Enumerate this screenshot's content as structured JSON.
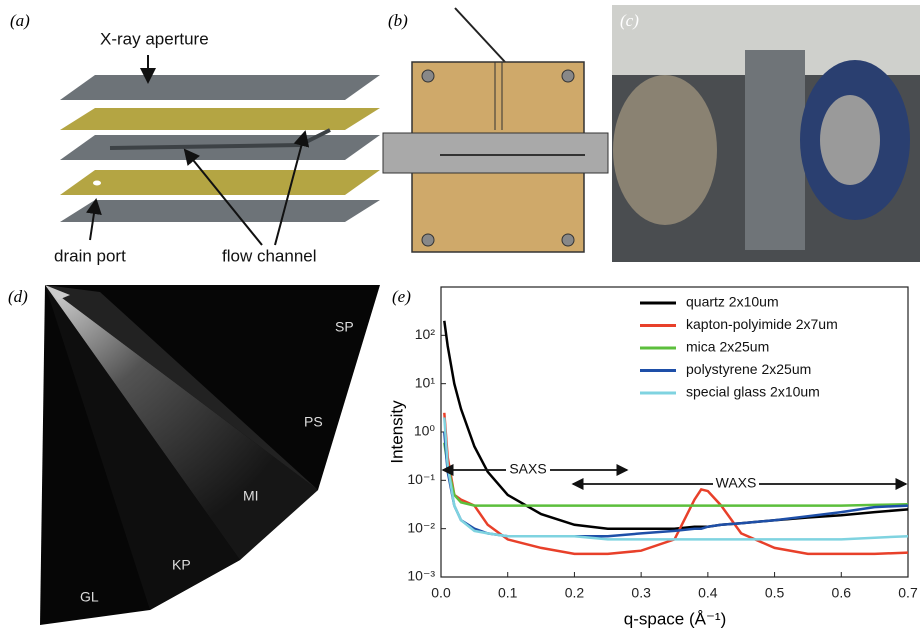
{
  "panels": {
    "a": {
      "label": "(a)",
      "annotations": [
        "X-ray aperture",
        "flow channel",
        "drain port"
      ]
    },
    "b": {
      "label": "(b)"
    },
    "c": {
      "label": "(c)"
    },
    "d": {
      "label": "(d)",
      "regions": [
        "SP",
        "PS",
        "MI",
        "KP",
        "GL"
      ]
    },
    "e": {
      "label": "(e)"
    }
  },
  "chart_data": {
    "type": "line",
    "xlabel": "q-space (Å⁻¹)",
    "ylabel": "Intensity",
    "log_y": true,
    "legend": "upper right",
    "annotations": [
      "SAXS",
      "WAXS"
    ],
    "x": [
      0.005,
      0.01,
      0.02,
      0.03,
      0.05,
      0.07,
      0.1,
      0.15,
      0.2,
      0.25,
      0.3,
      0.35,
      0.38,
      0.39,
      0.4,
      0.42,
      0.45,
      0.5,
      0.55,
      0.6,
      0.65,
      0.7
    ],
    "series": [
      {
        "name": "quartz 2x10um",
        "color": "#000000",
        "values": [
          200,
          60,
          10,
          3,
          0.5,
          0.15,
          0.05,
          0.02,
          0.012,
          0.01,
          0.01,
          0.01,
          0.011,
          0.011,
          0.011,
          0.012,
          0.013,
          0.015,
          0.017,
          0.019,
          0.022,
          0.025
        ]
      },
      {
        "name": "kapton-polyimide 2x7um",
        "color": "#e8402a",
        "values": [
          2.5,
          0.3,
          0.05,
          0.04,
          0.03,
          0.012,
          0.006,
          0.004,
          0.003,
          0.003,
          0.0035,
          0.006,
          0.04,
          0.065,
          0.06,
          0.03,
          0.008,
          0.004,
          0.003,
          0.003,
          0.003,
          0.0032
        ]
      },
      {
        "name": "mica 2x25um",
        "color": "#5cbf3c",
        "values": [
          0.6,
          0.2,
          0.05,
          0.035,
          0.03,
          0.03,
          0.03,
          0.03,
          0.03,
          0.03,
          0.03,
          0.03,
          0.03,
          0.03,
          0.03,
          0.03,
          0.03,
          0.03,
          0.03,
          0.03,
          0.031,
          0.032
        ]
      },
      {
        "name": "polystyrene 2x25um",
        "color": "#1e4fa8",
        "values": [
          1,
          0.15,
          0.03,
          0.015,
          0.01,
          0.008,
          0.007,
          0.007,
          0.007,
          0.007,
          0.008,
          0.009,
          0.01,
          0.01,
          0.011,
          0.012,
          0.013,
          0.015,
          0.018,
          0.022,
          0.028,
          0.03
        ]
      },
      {
        "name": "special glass 2x10um",
        "color": "#7fd3e0",
        "values": [
          2,
          0.2,
          0.03,
          0.015,
          0.009,
          0.008,
          0.007,
          0.007,
          0.007,
          0.006,
          0.006,
          0.006,
          0.006,
          0.006,
          0.006,
          0.006,
          0.006,
          0.006,
          0.006,
          0.006,
          0.0065,
          0.007
        ]
      }
    ],
    "xlim": [
      0,
      0.7
    ],
    "xticks": [
      {
        "value": 0,
        "label": "0.0"
      },
      0.1,
      0.2,
      0.3,
      0.4,
      0.5,
      0.6,
      0.7
    ],
    "ylim": [
      0.001,
      1000
    ],
    "yticks": [
      {
        "value": 0.001,
        "label": "10⁻³"
      },
      {
        "value": 0.01,
        "label": "10⁻²"
      },
      {
        "value": 0.1,
        "label": "10⁻¹"
      },
      {
        "value": 1,
        "label": "10⁰"
      },
      {
        "value": 10,
        "label": "10¹"
      },
      {
        "value": 100,
        "label": "10²"
      }
    ]
  }
}
